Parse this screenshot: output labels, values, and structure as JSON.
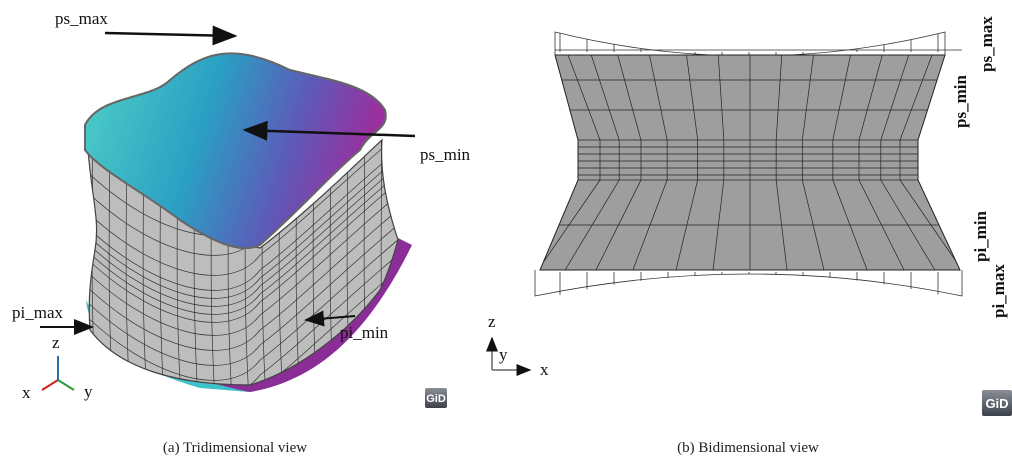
{
  "panels": [
    {
      "caption": "(a)  Tridimensional view",
      "labels": {
        "ps_max": "ps_max",
        "ps_min": "ps_min",
        "pi_max": "pi_max",
        "pi_min": "pi_min"
      },
      "axes": {
        "z": "z",
        "x": "x",
        "y": "y"
      },
      "logo": "GiD"
    },
    {
      "caption": "(b)  Bidimensional view",
      "labels": {
        "ps_max": "ps_max",
        "ps_min": "ps_min",
        "pi_min": "pi_min",
        "pi_max": "pi_max"
      },
      "axes": {
        "z": "z",
        "y": "y",
        "x": "x"
      },
      "logo": "GiD"
    }
  ]
}
